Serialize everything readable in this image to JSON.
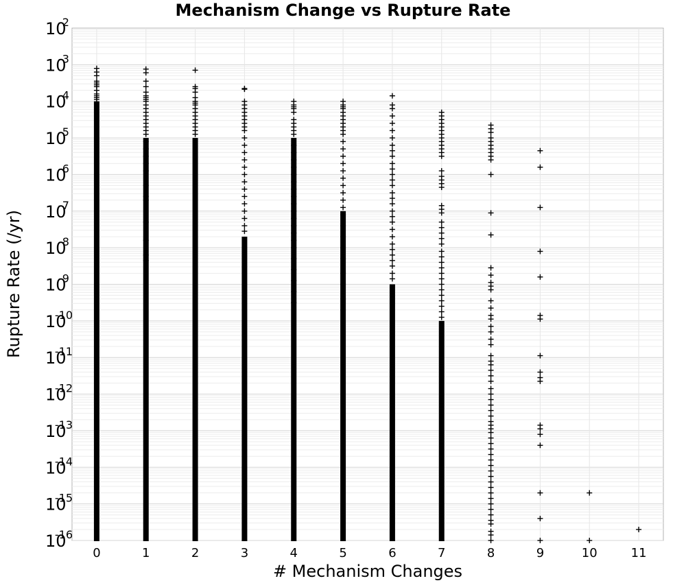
{
  "chart_data": {
    "type": "scatter",
    "title": "Mechanism Change vs Rupture Rate",
    "xlabel": "# Mechanism Changes",
    "ylabel": "Rupture Rate (/yr)",
    "xlim": [
      -0.5,
      11.5
    ],
    "ylim": [
      1e-16,
      0.01
    ],
    "yscale": "log",
    "grid": true,
    "marker": "+",
    "marker_color": "#000000",
    "x_ticks": [
      "0",
      "1",
      "2",
      "3",
      "4",
      "5",
      "6",
      "7",
      "8",
      "9",
      "10",
      "11"
    ],
    "y_ticks": [
      {
        "base": "10",
        "exp": "-16"
      },
      {
        "base": "10",
        "exp": "-15"
      },
      {
        "base": "10",
        "exp": "-14"
      },
      {
        "base": "10",
        "exp": "-13"
      },
      {
        "base": "10",
        "exp": "-12"
      },
      {
        "base": "10",
        "exp": "-11"
      },
      {
        "base": "10",
        "exp": "-10"
      },
      {
        "base": "10",
        "exp": "-9"
      },
      {
        "base": "10",
        "exp": "-8"
      },
      {
        "base": "10",
        "exp": "-7"
      },
      {
        "base": "10",
        "exp": "-6"
      },
      {
        "base": "10",
        "exp": "-5"
      },
      {
        "base": "10",
        "exp": "-4"
      },
      {
        "base": "10",
        "exp": "-3"
      },
      {
        "base": "10",
        "exp": "-2"
      }
    ],
    "series": [
      {
        "x": 0,
        "dense_range": [
          1e-16,
          0.0001
        ],
        "isolated_log10": [
          -3.1,
          -3.2,
          -3.3,
          -3.45,
          -3.5,
          -3.55,
          -3.6,
          -3.7,
          -3.8,
          -3.85,
          -3.9,
          -3.95
        ]
      },
      {
        "x": 1,
        "dense_range": [
          1e-16,
          1e-05
        ],
        "isolated_log10": [
          -3.12,
          -3.22,
          -3.45,
          -3.6,
          -3.75,
          -3.85,
          -3.9,
          -3.95,
          -4.0,
          -4.1,
          -4.2,
          -4.3,
          -4.4,
          -4.5,
          -4.6,
          -4.7,
          -4.8,
          -4.9,
          -5.1,
          -5.3,
          -5.5,
          -5.7,
          -5.9,
          -6.3,
          -6.6,
          -6.7,
          -7.3,
          -7.8,
          -8.2,
          -8.35
        ]
      },
      {
        "x": 2,
        "dense_range": [
          1e-16,
          1e-05
        ],
        "isolated_log10": [
          -3.15,
          -3.6,
          -3.65,
          -3.75,
          -3.9,
          -4.0,
          -4.05,
          -4.1,
          -4.2,
          -4.3,
          -4.4,
          -4.5,
          -4.6,
          -4.7,
          -4.8,
          -4.9
        ]
      },
      {
        "x": 3,
        "dense_range": [
          1e-16,
          2e-08
        ],
        "isolated_log10": [
          -3.65,
          -3.67,
          -4.0,
          -4.1,
          -4.2,
          -4.3,
          -4.4,
          -4.5,
          -4.6,
          -4.7,
          -4.8,
          -5.0,
          -5.2,
          -5.4,
          -5.6,
          -5.8,
          -6.0,
          -6.2,
          -6.4,
          -6.6,
          -6.8,
          -7.0,
          -7.2,
          -7.4,
          -7.55
        ]
      },
      {
        "x": 4,
        "dense_range": [
          1e-16,
          1e-05
        ],
        "isolated_log10": [
          -4.0,
          -4.1,
          -4.15,
          -4.2,
          -4.3,
          -4.5,
          -4.6,
          -4.7,
          -4.8,
          -4.9,
          -5.2,
          -5.4,
          -5.6,
          -5.8,
          -6.0,
          -6.2,
          -6.4,
          -6.6,
          -6.8,
          -7.0,
          -7.2,
          -7.4,
          -7.6,
          -7.8,
          -8.0,
          -8.3,
          -8.6,
          -8.9,
          -9.2,
          -9.5
        ]
      },
      {
        "x": 5,
        "dense_range": [
          1e-16,
          1e-07
        ],
        "isolated_log10": [
          -4.0,
          -4.1,
          -4.15,
          -4.2,
          -4.3,
          -4.4,
          -4.5,
          -4.6,
          -4.7,
          -4.8,
          -4.9,
          -5.1,
          -5.3,
          -5.5,
          -5.7,
          -5.9,
          -6.1,
          -6.3,
          -6.5,
          -6.7,
          -6.9,
          -7.1,
          -7.4,
          -7.7,
          -8.0,
          -8.3,
          -8.7,
          -9.0,
          -9.4,
          -9.7
        ]
      },
      {
        "x": 6,
        "dense_range": [
          1e-16,
          1e-09
        ],
        "isolated_log10": [
          -3.85,
          -4.1,
          -4.2,
          -4.4,
          -4.6,
          -4.8,
          -5.0,
          -5.2,
          -5.35,
          -5.5,
          -5.7,
          -5.85,
          -6.0,
          -6.15,
          -6.3,
          -6.5,
          -6.65,
          -6.8,
          -7.0,
          -7.15,
          -7.3,
          -7.5,
          -7.7,
          -7.9,
          -8.05,
          -8.2,
          -8.35,
          -8.5,
          -8.7,
          -8.85
        ]
      },
      {
        "x": 7,
        "dense_range": [
          1e-16,
          1e-10
        ],
        "isolated_log10": [
          -4.3,
          -4.4,
          -4.5,
          -4.6,
          -4.7,
          -4.8,
          -4.9,
          -5.0,
          -5.1,
          -5.2,
          -5.3,
          -5.4,
          -5.5,
          -5.9,
          -6.05,
          -6.15,
          -6.25,
          -6.35,
          -6.85,
          -6.95,
          -7.05,
          -7.3,
          -7.45,
          -7.6,
          -7.75,
          -7.9,
          -8.1,
          -8.25,
          -8.4,
          -8.55,
          -8.7,
          -8.85,
          -9.0,
          -9.15,
          -9.3,
          -9.45,
          -9.6,
          -9.75,
          -9.9
        ]
      },
      {
        "x": 8,
        "dense_range": null,
        "isolated_log10": [
          -4.65,
          -4.75,
          -4.85,
          -5.0,
          -5.1,
          -5.2,
          -5.3,
          -5.4,
          -5.5,
          -5.6,
          -6.0,
          -7.05,
          -7.65,
          -8.55,
          -8.75,
          -8.95,
          -9.05,
          -9.15,
          -9.45,
          -9.65,
          -9.85,
          -9.95,
          -10.15,
          -10.3,
          -10.5,
          -10.65,
          -10.95,
          -11.1,
          -11.2,
          -11.35,
          -11.5,
          -11.65,
          -11.85,
          -12.0,
          -12.15,
          -12.3,
          -12.45,
          -12.6,
          -12.75,
          -12.85,
          -12.95,
          -13.05,
          -13.2,
          -13.35,
          -13.5,
          -13.65,
          -13.8,
          -13.95,
          -14.1,
          -14.25,
          -14.4,
          -14.55,
          -14.7,
          -14.85,
          -15.0,
          -15.15,
          -15.3,
          -15.45,
          -15.55,
          -15.75,
          -15.85,
          -16.0
        ]
      },
      {
        "x": 9,
        "dense_range": null,
        "isolated_log10": [
          -5.35,
          -5.8,
          -6.9,
          -8.1,
          -8.8,
          -9.85,
          -9.95,
          -10.95,
          -11.4,
          -11.55,
          -11.65,
          -12.85,
          -12.95,
          -13.1,
          -13.4,
          -14.7,
          -15.4,
          -16.0
        ]
      },
      {
        "x": 10,
        "dense_range": null,
        "isolated_log10": [
          -14.7,
          -16.0
        ]
      },
      {
        "x": 11,
        "dense_range": null,
        "isolated_log10": [
          -15.7
        ]
      }
    ]
  }
}
